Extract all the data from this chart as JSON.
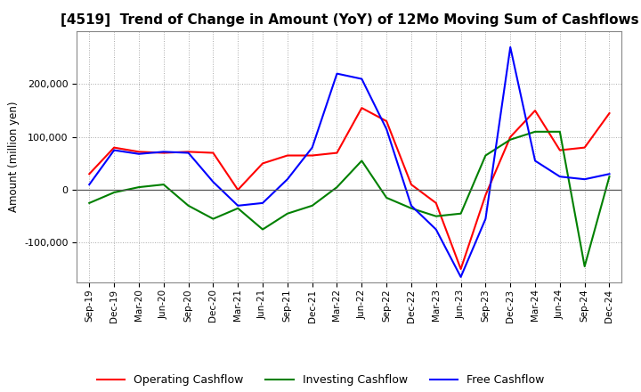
{
  "title": "[4519]  Trend of Change in Amount (YoY) of 12Mo Moving Sum of Cashflows",
  "ylabel": "Amount (million yen)",
  "background_color": "#ffffff",
  "grid_color": "#aaaaaa",
  "title_fontsize": 11,
  "tick_labels": [
    "Sep-19",
    "Dec-19",
    "Mar-20",
    "Jun-20",
    "Sep-20",
    "Dec-20",
    "Mar-21",
    "Jun-21",
    "Sep-21",
    "Dec-21",
    "Mar-22",
    "Jun-22",
    "Sep-22",
    "Dec-22",
    "Mar-23",
    "Jun-23",
    "Sep-23",
    "Dec-23",
    "Mar-24",
    "Jun-24",
    "Sep-24",
    "Dec-24"
  ],
  "operating": [
    30000,
    80000,
    72000,
    70000,
    72000,
    70000,
    0,
    50000,
    65000,
    65000,
    70000,
    155000,
    130000,
    10000,
    -25000,
    -150000,
    -10000,
    100000,
    150000,
    75000,
    80000,
    145000
  ],
  "investing": [
    -25000,
    -5000,
    5000,
    10000,
    -30000,
    -55000,
    -35000,
    -75000,
    -45000,
    -30000,
    5000,
    55000,
    -15000,
    -35000,
    -50000,
    -45000,
    65000,
    95000,
    110000,
    110000,
    -145000,
    25000
  ],
  "free": [
    10000,
    75000,
    68000,
    72000,
    70000,
    15000,
    -30000,
    -25000,
    20000,
    80000,
    220000,
    210000,
    115000,
    -30000,
    -75000,
    -165000,
    -55000,
    270000,
    55000,
    25000,
    20000,
    30000
  ],
  "operating_color": "#ff0000",
  "investing_color": "#008000",
  "free_color": "#0000ff",
  "ylim": [
    -175000,
    300000
  ],
  "yticks": [
    -100000,
    0,
    100000,
    200000
  ]
}
